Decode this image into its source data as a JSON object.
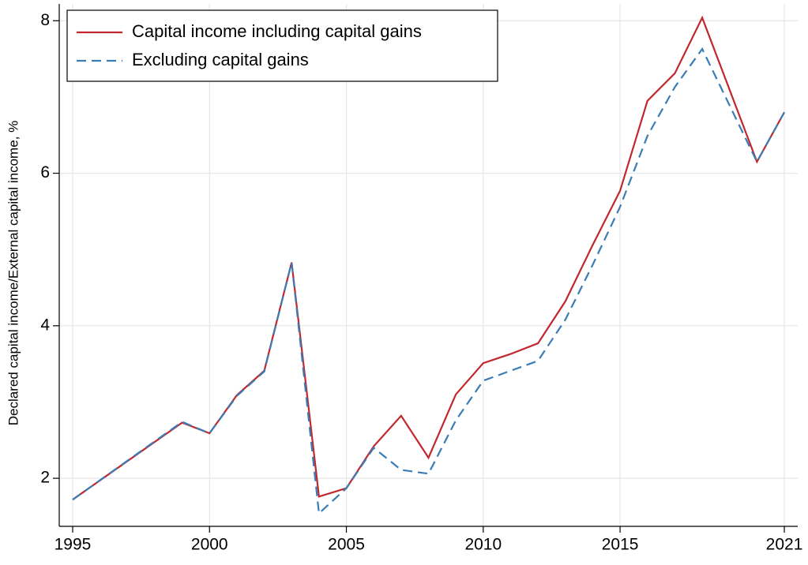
{
  "chart_data": {
    "type": "line",
    "ylabel": "Declared capital income/External capital income, %",
    "x": [
      1995,
      1999,
      2000,
      2001,
      2002,
      2003,
      2004,
      2005,
      2006,
      2007,
      2008,
      2009,
      2010,
      2011,
      2012,
      2013,
      2014,
      2015,
      2016,
      2017,
      2018,
      2020,
      2021
    ],
    "series": [
      {
        "name": "Capital income including capital gains",
        "color": "#c0282e",
        "dash": false,
        "values": [
          1.72,
          2.73,
          2.59,
          3.09,
          3.41,
          4.83,
          1.76,
          1.87,
          2.42,
          2.82,
          2.27,
          3.1,
          3.51,
          3.63,
          3.77,
          4.32,
          5.06,
          5.77,
          6.95,
          7.31,
          8.04,
          6.15,
          6.8
        ]
      },
      {
        "name": "Excluding capital gains",
        "color": "#3a7cb5",
        "dash": true,
        "values": [
          1.72,
          2.74,
          2.59,
          3.08,
          3.4,
          4.83,
          1.54,
          1.87,
          2.4,
          2.11,
          2.06,
          2.76,
          3.28,
          3.41,
          3.54,
          4.08,
          4.8,
          5.56,
          6.49,
          7.13,
          7.63,
          6.15,
          6.8
        ]
      }
    ],
    "xlim": [
      1994.51,
      2021.49
    ],
    "xticks": [
      1995,
      2000,
      2005,
      2010,
      2015,
      2021
    ],
    "ylim": [
      1.37,
      8.22
    ],
    "yticks": [
      2,
      4,
      6,
      8
    ],
    "grid": true,
    "legend": "top-left"
  }
}
